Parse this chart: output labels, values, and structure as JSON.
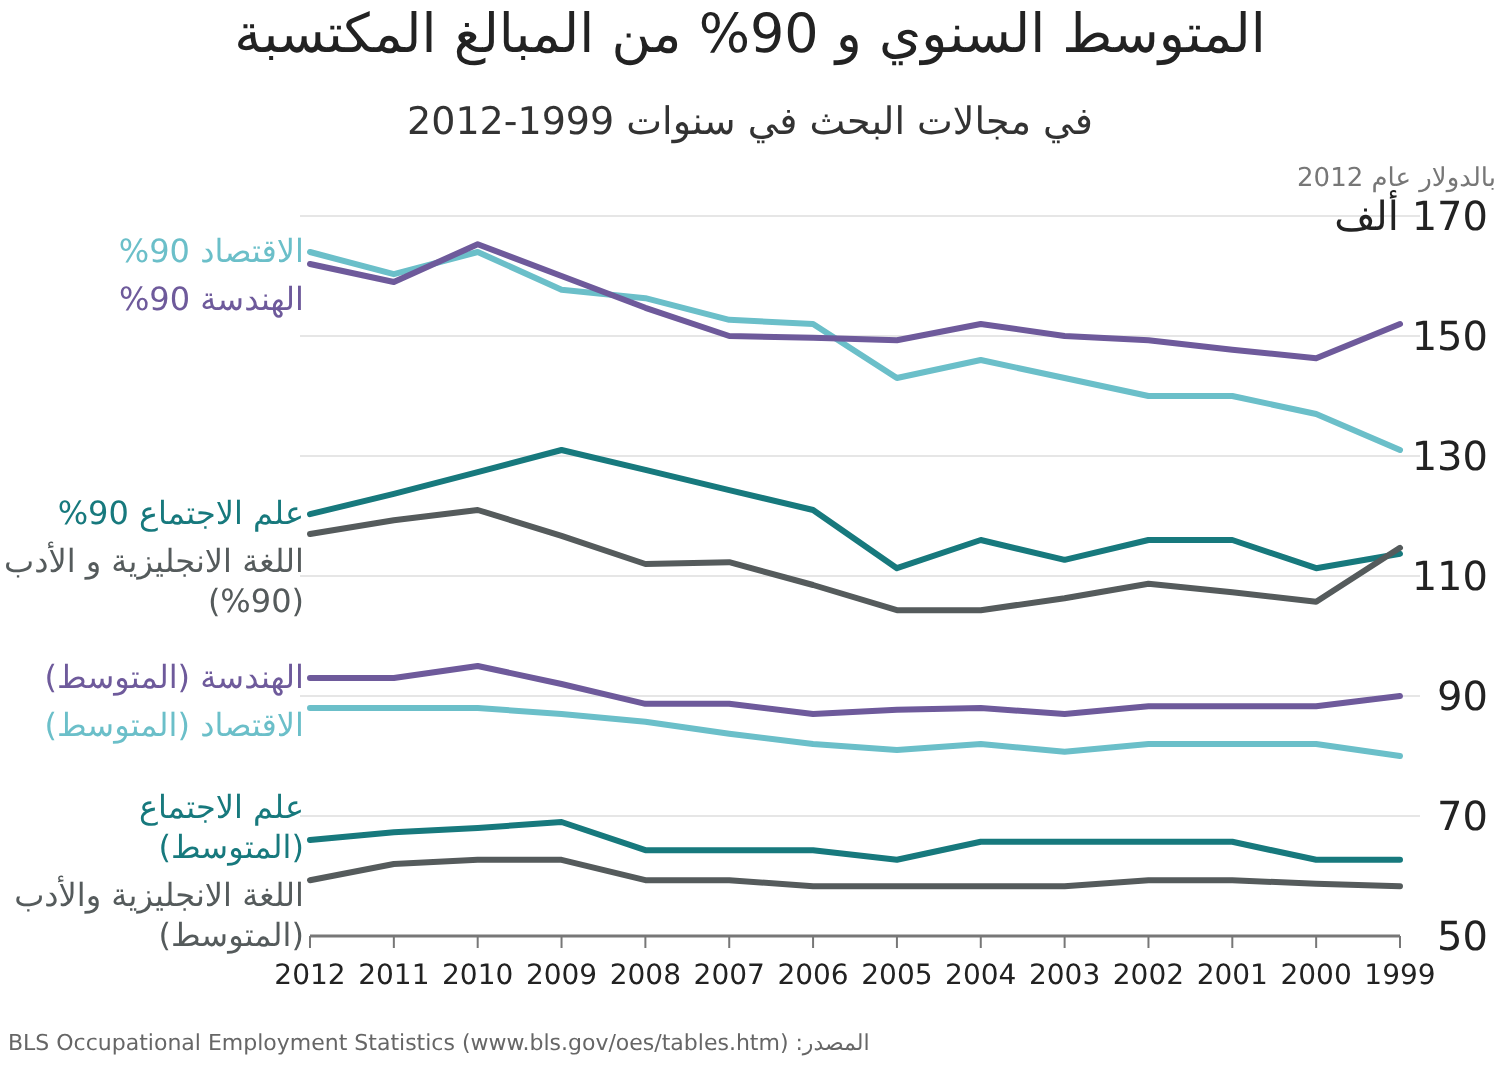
{
  "chart_data": {
    "type": "line",
    "title": "المتوسط السنوي و 90% من المبالغ المكتسبة",
    "subtitle": "في مجالات البحث في سنوات 1999-2012",
    "ylabel": "بالدولار عام 2012",
    "x": [
      2012,
      2011,
      2010,
      2009,
      2008,
      2007,
      2006,
      2005,
      2004,
      2003,
      2002,
      2001,
      2000,
      1999
    ],
    "xlim": [
      2012,
      1999
    ],
    "xticks": [
      2012,
      2011,
      2010,
      2009,
      2008,
      2007,
      2006,
      2005,
      2004,
      2003,
      2002,
      2001,
      2000,
      1999
    ],
    "ylim": [
      50,
      170
    ],
    "yticks": [
      50,
      70,
      90,
      110,
      130,
      150,
      {
        "value": 170,
        "label": "170 ألف"
      }
    ],
    "grid": "y",
    "series": [
      {
        "name": "الاقتصاد 90%",
        "color": "#6bbfc9",
        "values": [
          164,
          160.3,
          164,
          157.7,
          156.3,
          152.7,
          152,
          143,
          146,
          143,
          140,
          140,
          137,
          131
        ]
      },
      {
        "name": "الهندسة 90%",
        "color": "#6e5a9b",
        "values": [
          162,
          159,
          165.3,
          160,
          154.7,
          150,
          149.7,
          149.3,
          152,
          150,
          149.3,
          147.7,
          146.3,
          152
        ]
      },
      {
        "name": "علم الاجتماع 90%",
        "color": "#17797d",
        "values": [
          120.3,
          123.7,
          127.3,
          131,
          127.7,
          124.3,
          121,
          111.3,
          116,
          112.7,
          116,
          116,
          111.3,
          113.7
        ]
      },
      {
        "name": "اللغة الانجليزية و الأدب (90%)",
        "color": "#555b5c",
        "values": [
          117,
          119.3,
          121,
          116.7,
          112,
          112.3,
          108.5,
          104.3,
          104.3,
          106.3,
          108.7,
          107.3,
          105.7,
          114.7
        ]
      },
      {
        "name": "الهندسة (المتوسط)",
        "color": "#6e5a9b",
        "values": [
          93,
          93,
          95,
          92,
          88.7,
          88.7,
          87,
          87.7,
          88,
          87,
          88.3,
          88.3,
          88.3,
          90
        ]
      },
      {
        "name": "الاقتصاد (المتوسط)",
        "color": "#6bbfc9",
        "values": [
          88,
          88,
          88,
          87,
          85.7,
          83.7,
          82,
          81,
          82,
          80.7,
          82,
          82,
          82,
          80
        ]
      },
      {
        "name": "علم الاجتماع (المتوسط)",
        "color": "#17797d",
        "values": [
          66,
          67.3,
          68,
          69,
          64.3,
          64.3,
          64.3,
          62.7,
          65.7,
          65.7,
          65.7,
          65.7,
          62.7,
          62.7
        ]
      },
      {
        "name": "اللغة الانجليزية والأدب (المتوسط)",
        "color": "#555b5c",
        "values": [
          59.3,
          62,
          62.7,
          62.7,
          59.3,
          59.3,
          58.3,
          58.3,
          58.3,
          58.3,
          59.3,
          59.3,
          58.7,
          58.3
        ]
      }
    ],
    "annotations": [
      "المصدر: BLS Occupational Employment Statistics (www.bls.gov/oes/tables.htm)"
    ]
  }
}
